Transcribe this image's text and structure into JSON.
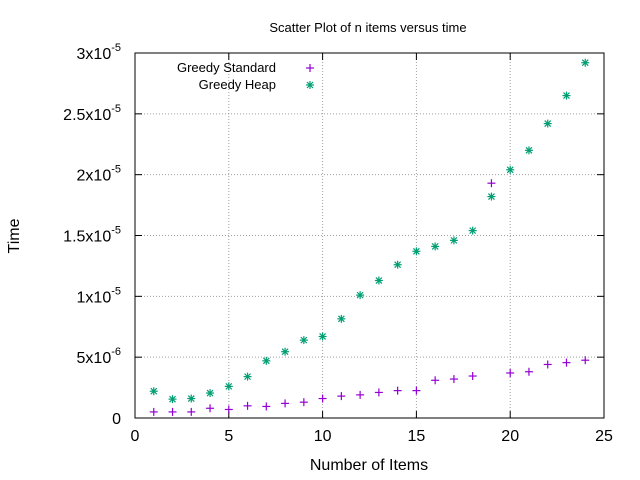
{
  "chart_data": {
    "type": "scatter",
    "title": "Scatter Plot of n items versus time",
    "xlabel": "Number of Items",
    "ylabel": "Time",
    "xlim": [
      0,
      25
    ],
    "ylim": [
      0,
      3e-05
    ],
    "grid": true,
    "legend_position": "top-left",
    "x_ticks": [
      {
        "value": 0,
        "label": "0"
      },
      {
        "value": 5,
        "label": "5"
      },
      {
        "value": 10,
        "label": "10"
      },
      {
        "value": 15,
        "label": "15"
      },
      {
        "value": 20,
        "label": "20"
      },
      {
        "value": 25,
        "label": "25"
      }
    ],
    "y_ticks": [
      {
        "value": 0,
        "label": "0"
      },
      {
        "value": 5e-06,
        "mant": "5x10",
        "exp": "-6"
      },
      {
        "value": 1e-05,
        "mant": "1x10",
        "exp": "-5"
      },
      {
        "value": 1.5e-05,
        "mant": "1.5x10",
        "exp": "-5"
      },
      {
        "value": 2e-05,
        "mant": "2x10",
        "exp": "-5"
      },
      {
        "value": 2.5e-05,
        "mant": "2.5x10",
        "exp": "-5"
      },
      {
        "value": 3e-05,
        "mant": "3x10",
        "exp": "-5"
      }
    ],
    "series": [
      {
        "name": "Greedy Standard",
        "color": "#9400d3",
        "marker": "plus",
        "x": [
          1,
          2,
          3,
          4,
          5,
          6,
          7,
          8,
          9,
          10,
          11,
          12,
          13,
          14,
          15,
          16,
          17,
          18,
          19,
          20,
          21,
          22,
          23,
          24
        ],
        "y": [
          5e-07,
          5e-07,
          5e-07,
          8e-07,
          7e-07,
          1e-06,
          9.5e-07,
          1.2e-06,
          1.3e-06,
          1.6e-06,
          1.8e-06,
          1.9e-06,
          2.1e-06,
          2.25e-06,
          2.25e-06,
          3.1e-06,
          3.2e-06,
          3.45e-06,
          1.93e-05,
          3.7e-06,
          3.8e-06,
          4.4e-06,
          4.55e-06,
          4.75e-06
        ]
      },
      {
        "name": "Greedy Heap",
        "color": "#009e73",
        "marker": "star",
        "x": [
          1,
          2,
          3,
          4,
          5,
          6,
          7,
          8,
          9,
          10,
          11,
          12,
          13,
          14,
          15,
          16,
          17,
          18,
          19,
          20,
          21,
          22,
          23,
          24
        ],
        "y": [
          2.2e-06,
          1.55e-06,
          1.6e-06,
          2.05e-06,
          2.6e-06,
          3.4e-06,
          4.7e-06,
          5.45e-06,
          6.4e-06,
          6.7e-06,
          8.15e-06,
          1.01e-05,
          1.13e-05,
          1.26e-05,
          1.37e-05,
          1.41e-05,
          1.46e-05,
          1.54e-05,
          1.82e-05,
          2.04e-05,
          2.2e-05,
          2.42e-05,
          2.65e-05,
          2.92e-05
        ]
      }
    ]
  }
}
